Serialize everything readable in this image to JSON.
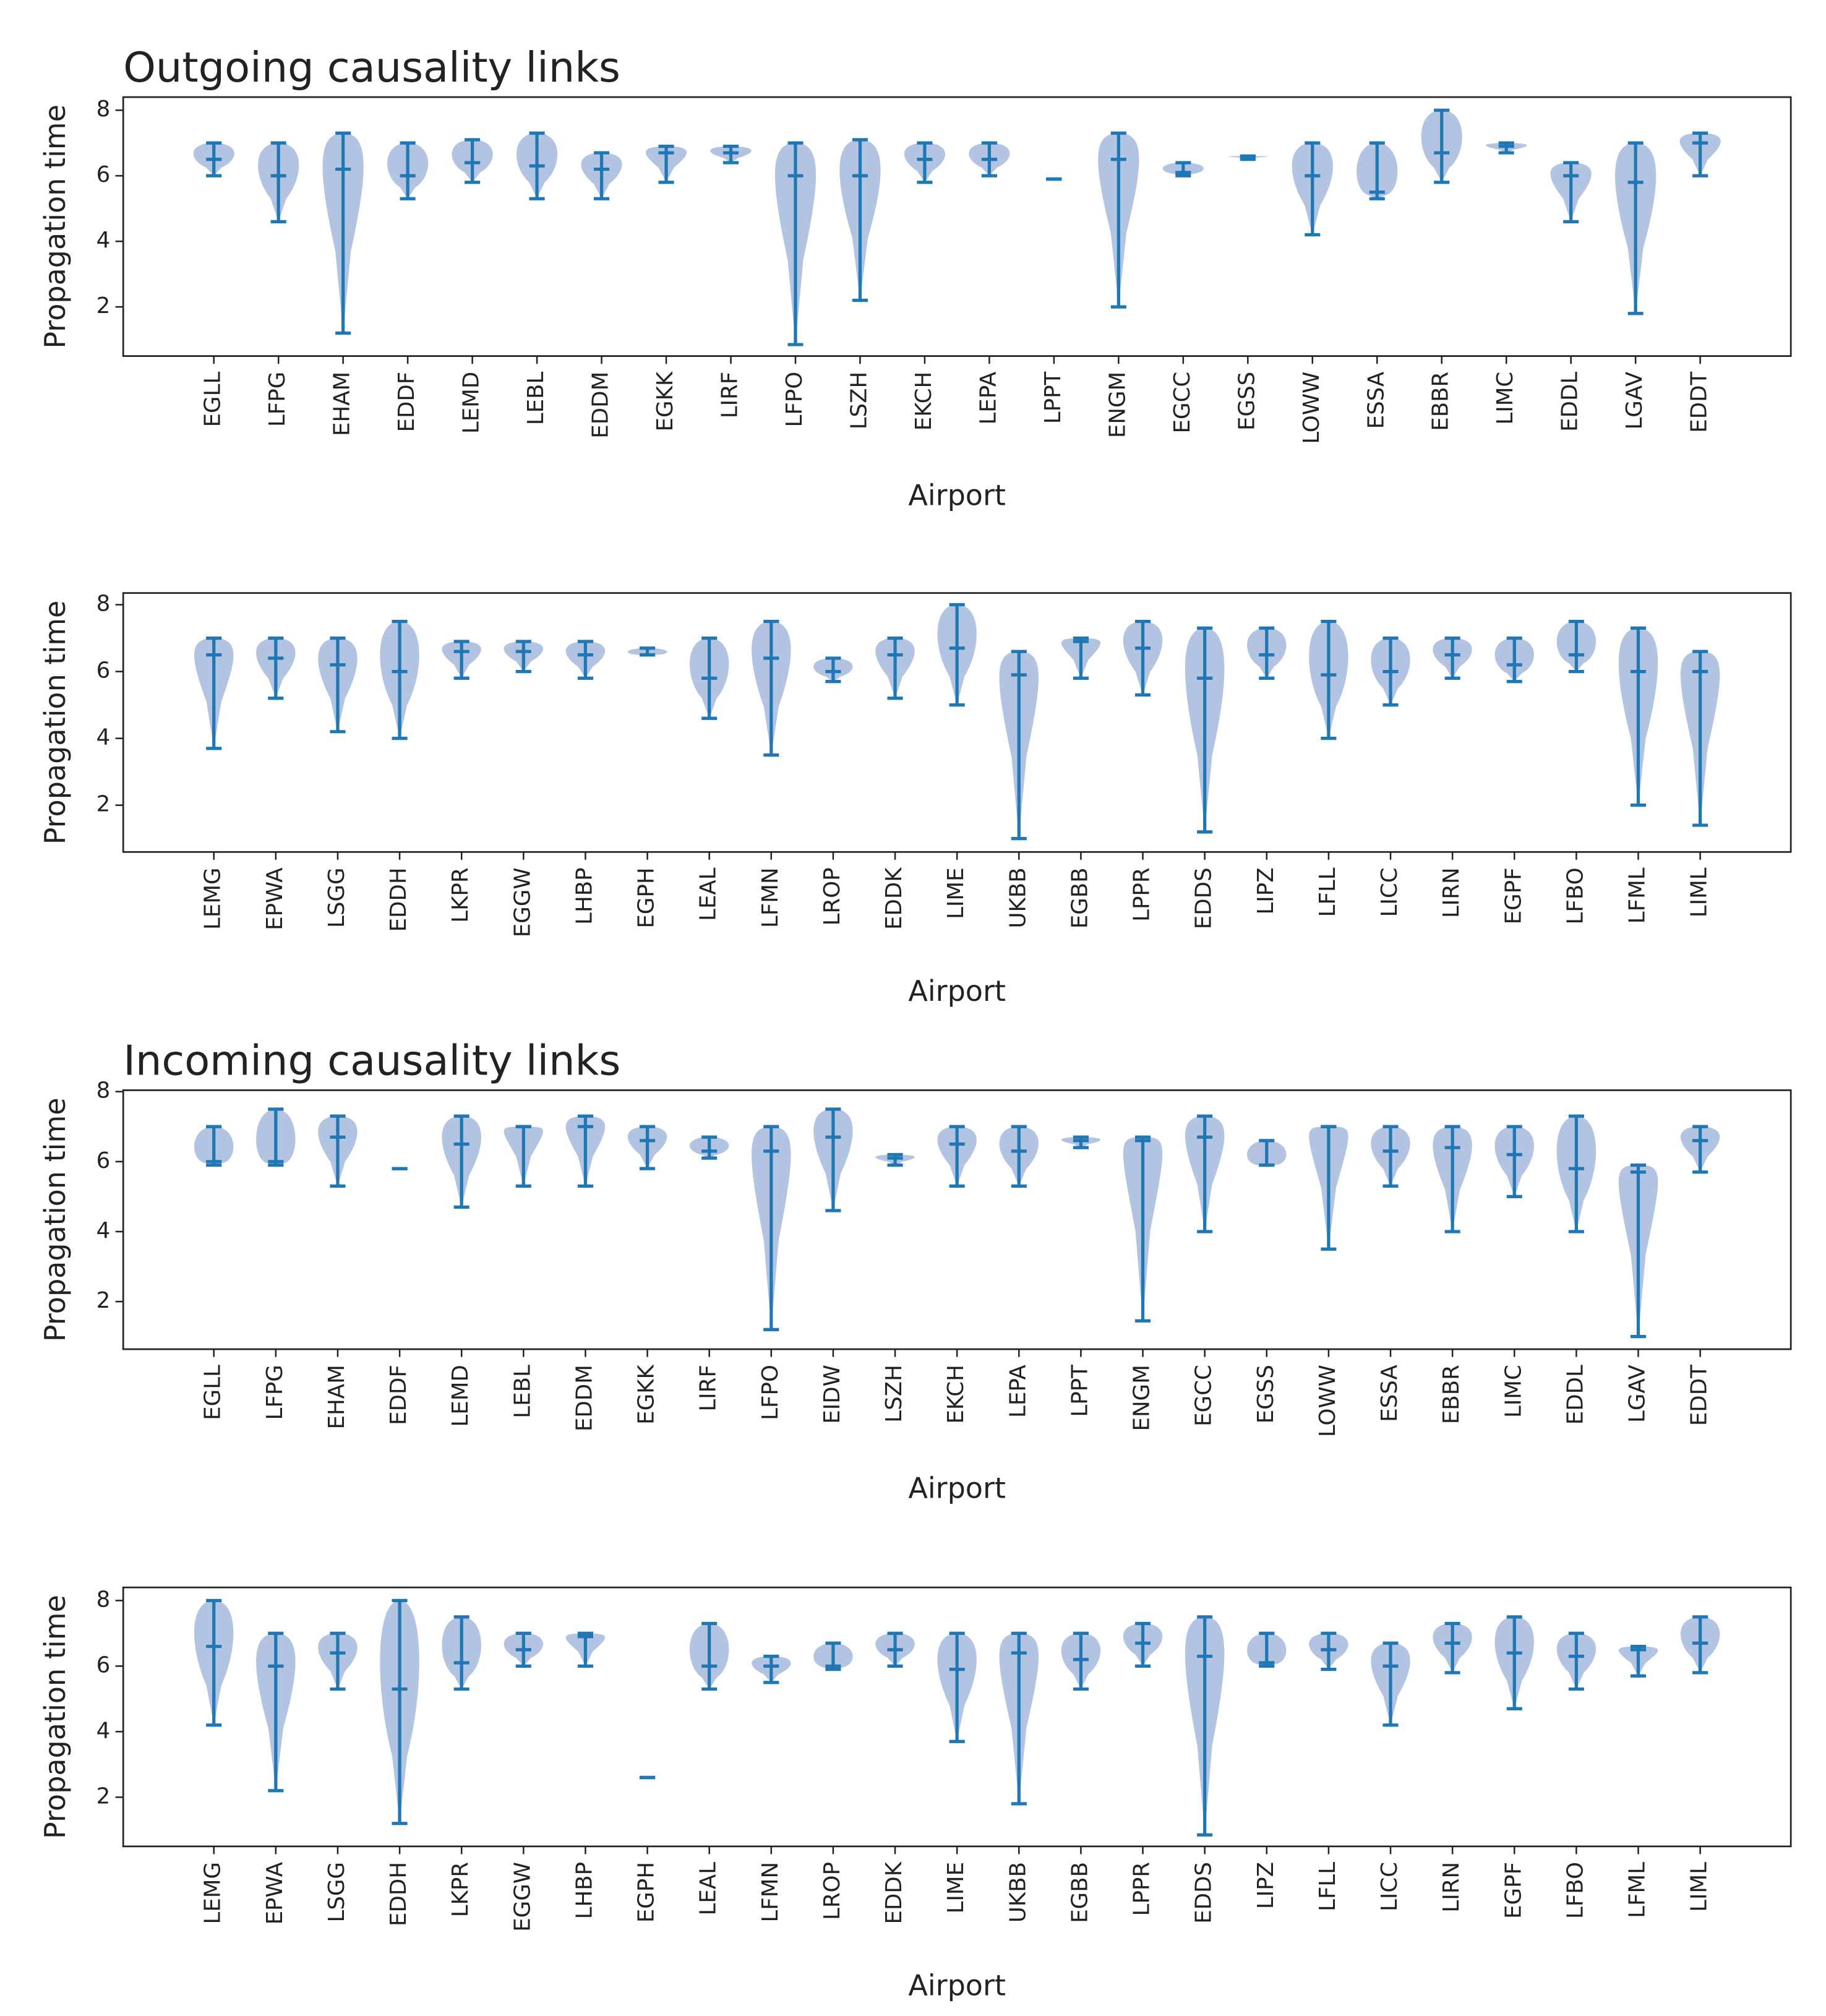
{
  "chart_data": [
    {
      "type": "violin",
      "title": "Outgoing causality links",
      "x_label": "Airport",
      "y_label": "Propagation time",
      "color": "#1f77b4",
      "body_color": "#b3c4e2",
      "categories": [
        "EGLL",
        "LFPG",
        "EHAM",
        "EDDF",
        "LEMD",
        "LEBL",
        "EDDM",
        "EGKK",
        "LIRF",
        "LFPO",
        "LSZH",
        "EKCH",
        "LEPA",
        "LPPT",
        "ENGM",
        "EGCC",
        "EGSS",
        "LOWW",
        "ESSA",
        "EBBR",
        "LIMC",
        "EDDL",
        "LGAV",
        "EDDT"
      ],
      "mins": [
        6.0,
        4.6,
        1.2,
        5.3,
        5.8,
        5.3,
        5.3,
        5.8,
        6.4,
        0.85,
        2.2,
        5.8,
        6.0,
        5.9,
        2.0,
        6.0,
        6.5,
        4.2,
        5.3,
        5.8,
        6.7,
        4.6,
        1.8,
        6.0
      ],
      "medians": [
        6.5,
        6.0,
        6.2,
        6.0,
        6.4,
        6.3,
        6.2,
        6.7,
        6.7,
        6.0,
        6.0,
        6.5,
        6.5,
        5.9,
        6.5,
        6.1,
        6.6,
        6.0,
        5.5,
        6.7,
        6.9,
        6.0,
        5.8,
        7.0
      ],
      "maxs": [
        7.0,
        7.0,
        7.3,
        7.0,
        7.1,
        7.3,
        6.7,
        6.9,
        6.9,
        7.0,
        7.1,
        7.0,
        7.0,
        5.9,
        7.3,
        6.4,
        6.6,
        7.0,
        7.0,
        8.0,
        7.0,
        6.4,
        7.0,
        7.3
      ],
      "ylim": [
        0.5,
        8.4
      ],
      "yticks": [
        2,
        4,
        6,
        8
      ]
    },
    {
      "type": "violin",
      "x_label": "Airport",
      "y_label": "Propagation time",
      "color": "#1f77b4",
      "body_color": "#b3c4e2",
      "categories": [
        "LEMG",
        "EPWA",
        "LSGG",
        "EDDH",
        "LKPR",
        "EGGW",
        "LHBP",
        "EGPH",
        "LEAL",
        "LFMN",
        "LROP",
        "EDDK",
        "LIME",
        "UKBB",
        "EGBB",
        "LPPR",
        "EDDS",
        "LIPZ",
        "LFLL",
        "LICC",
        "LIRN",
        "EGPF",
        "LFBO",
        "LFML",
        "LIML"
      ],
      "mins": [
        3.7,
        5.2,
        4.2,
        4.0,
        5.8,
        6.0,
        5.8,
        6.5,
        4.6,
        3.5,
        5.7,
        5.2,
        5.0,
        1.0,
        5.8,
        5.3,
        1.2,
        5.8,
        4.0,
        5.0,
        5.8,
        5.7,
        6.0,
        2.0,
        1.4
      ],
      "medians": [
        6.5,
        6.4,
        6.2,
        6.0,
        6.6,
        6.6,
        6.5,
        6.5,
        5.8,
        6.4,
        6.0,
        6.5,
        6.7,
        5.9,
        6.9,
        6.7,
        5.8,
        6.5,
        5.9,
        6.0,
        6.5,
        6.2,
        6.5,
        6.0,
        6.0
      ],
      "maxs": [
        7.0,
        7.0,
        7.0,
        7.5,
        6.9,
        6.9,
        6.9,
        6.7,
        7.0,
        7.5,
        6.4,
        7.0,
        8.0,
        6.6,
        7.0,
        7.5,
        7.3,
        7.3,
        7.5,
        7.0,
        7.0,
        7.0,
        7.5,
        7.3,
        6.6
      ],
      "ylim": [
        0.6,
        8.35
      ],
      "yticks": [
        2,
        4,
        6,
        8
      ]
    },
    {
      "type": "violin",
      "title": "Incoming causality links",
      "x_label": "Airport",
      "y_label": "Propagation time",
      "color": "#1f77b4",
      "body_color": "#b3c4e2",
      "categories": [
        "EGLL",
        "LFPG",
        "EHAM",
        "EDDF",
        "LEMD",
        "LEBL",
        "EDDM",
        "EGKK",
        "LIRF",
        "LFPO",
        "EIDW",
        "LSZH",
        "EKCH",
        "LEPA",
        "LPPT",
        "ENGM",
        "EGCC",
        "EGSS",
        "LOWW",
        "ESSA",
        "EBBR",
        "LIMC",
        "EDDL",
        "LGAV",
        "EDDT"
      ],
      "mins": [
        5.9,
        5.9,
        5.3,
        5.8,
        4.7,
        5.3,
        5.3,
        5.8,
        6.1,
        1.2,
        4.6,
        5.9,
        5.3,
        5.3,
        6.4,
        1.45,
        4.0,
        5.9,
        3.5,
        5.3,
        4.0,
        5.0,
        4.0,
        1.0,
        5.7
      ],
      "medians": [
        6.0,
        6.0,
        6.7,
        5.8,
        6.5,
        7.0,
        7.0,
        6.6,
        6.3,
        6.3,
        6.7,
        6.1,
        6.5,
        6.3,
        6.6,
        6.6,
        6.7,
        5.9,
        7.0,
        6.3,
        6.4,
        6.2,
        5.8,
        5.7,
        6.6
      ],
      "maxs": [
        7.0,
        7.5,
        7.3,
        5.8,
        7.3,
        7.0,
        7.3,
        7.0,
        6.7,
        7.0,
        7.5,
        6.2,
        7.0,
        7.0,
        6.7,
        6.7,
        7.3,
        6.6,
        7.0,
        7.0,
        7.0,
        7.0,
        7.3,
        5.9,
        7.0
      ],
      "ylim": [
        0.64,
        8.04
      ],
      "yticks": [
        2,
        4,
        6,
        8
      ]
    },
    {
      "type": "violin",
      "x_label": "Airport",
      "y_label": "Propagation time",
      "color": "#1f77b4",
      "body_color": "#b3c4e2",
      "categories": [
        "LEMG",
        "EPWA",
        "LSGG",
        "EDDH",
        "LKPR",
        "EGGW",
        "LHBP",
        "EGPH",
        "LEAL",
        "LFMN",
        "LROP",
        "EDDK",
        "LIME",
        "UKBB",
        "EGBB",
        "LPPR",
        "EDDS",
        "LIPZ",
        "LFLL",
        "LICC",
        "LIRN",
        "EGPF",
        "LFBO",
        "LFML",
        "LIML"
      ],
      "mins": [
        4.2,
        2.2,
        5.3,
        1.2,
        5.3,
        6.0,
        6.0,
        2.6,
        5.3,
        5.5,
        5.9,
        6.0,
        3.7,
        1.8,
        5.3,
        6.0,
        0.85,
        6.0,
        5.9,
        4.2,
        5.8,
        4.7,
        5.3,
        5.7,
        5.8
      ],
      "medians": [
        6.6,
        6.0,
        6.4,
        5.3,
        6.1,
        6.5,
        6.9,
        2.6,
        6.0,
        6.0,
        6.0,
        6.5,
        5.9,
        6.4,
        6.2,
        6.7,
        6.3,
        6.1,
        6.5,
        6.0,
        6.7,
        6.4,
        6.3,
        6.5,
        6.7
      ],
      "maxs": [
        8.0,
        7.0,
        7.0,
        8.0,
        7.5,
        7.0,
        7.0,
        2.6,
        7.3,
        6.3,
        6.7,
        7.0,
        7.0,
        7.0,
        7.0,
        7.3,
        7.5,
        7.0,
        7.0,
        6.7,
        7.3,
        7.5,
        7.0,
        6.6,
        7.5
      ],
      "ylim": [
        0.5,
        8.4
      ],
      "yticks": [
        2,
        4,
        6,
        8
      ]
    }
  ]
}
